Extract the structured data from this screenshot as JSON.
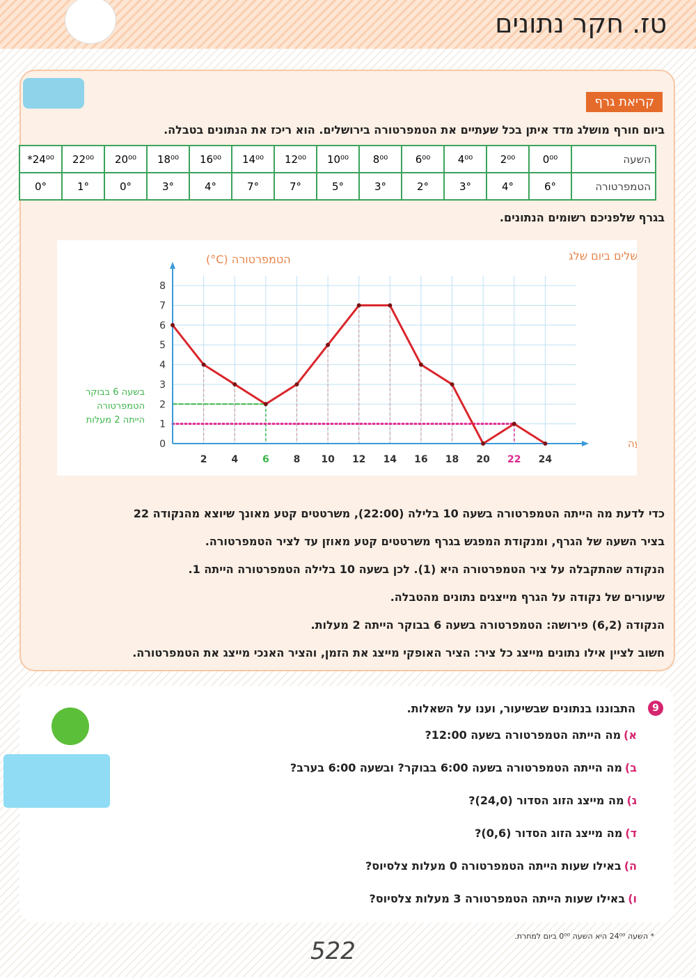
{
  "header": {
    "title": "טז. חקר נתונים"
  },
  "section": {
    "label": "קריאת גרף",
    "intro": "ביום חורף מושלג מדד איתן בכל שעתיים את הטמפרטורה בירושלים. הוא ריכז את הנתונים בטבלה."
  },
  "table": {
    "rows": [
      [
        "השעה",
        "0⁰⁰",
        "2⁰⁰",
        "4⁰⁰",
        "6⁰⁰",
        "8⁰⁰",
        "10⁰⁰",
        "12⁰⁰",
        "14⁰⁰",
        "16⁰⁰",
        "18⁰⁰",
        "20⁰⁰",
        "22⁰⁰",
        "*24⁰⁰"
      ],
      [
        "הטמפרטורה",
        "6°",
        "4°",
        "3°",
        "2°",
        "3°",
        "5°",
        "7°",
        "7°",
        "4°",
        "3°",
        "0°",
        "1°",
        "0°"
      ]
    ]
  },
  "chart_intro": "בגרף שלפניכם רשומים הנתונים.",
  "chart_data": {
    "type": "line",
    "title": "הטמפרטורות בירושלים ביום שלג",
    "y_label": "הטמפרטורה (C°)",
    "x_label": "השעה",
    "x": [
      0,
      2,
      4,
      6,
      8,
      10,
      12,
      14,
      16,
      18,
      20,
      22,
      24
    ],
    "values": [
      6,
      4,
      3,
      2,
      3,
      5,
      7,
      7,
      4,
      3,
      0,
      1,
      0
    ],
    "color": "#d9262c",
    "xlim": [
      0,
      26
    ],
    "ylim": [
      0,
      8.5
    ],
    "xticks": [
      2,
      4,
      6,
      8,
      10,
      12,
      14,
      16,
      18,
      20,
      22,
      24
    ],
    "yticks": [
      0,
      1,
      2,
      3,
      4,
      5,
      6,
      7,
      8
    ],
    "grid": true,
    "annotation": [
      "בשעה 6 בבוקר",
      "הטמפרטורה",
      "הייתה 2 מעלות"
    ]
  },
  "explanation": [
    "כדי לדעת מה הייתה הטמפרטורה בשעה 10 בלילה (22:00), משרטטים קטע מאונך שיוצא מהנקודה 22",
    "בציר השעה של הגרף, ומנקודת המפגש בגרף משרטטים קטע מאוזן עד לציר הטמפרטורה.",
    "הנקודה שהתקבלה על ציר הטמפרטורה היא (1). לכן בשעה 10 בלילה הטמפרטורה הייתה 1.",
    "שיעורים של נקודה על הגרף מייצגים נתונים מהטבלה.",
    "הנקודה (6,2) פירושה: הטמפרטורה בשעה 6 בבוקר הייתה 2 מעלות.",
    "חשוב לציין אילו נתונים מייצג כל ציר: הציר האופקי מייצג את הזמן, והציר האנכי מייצג את הטמפרטורה."
  ],
  "exercise": {
    "number": "9",
    "instruction": "התבוננו בנתונים שבשיעור, וענו על השאלות.",
    "questions": [
      {
        "letter": "א)",
        "text": "מה הייתה הטמפרטורה בשעה 12:00?"
      },
      {
        "letter": "ב)",
        "text": "מה הייתה הטמפרטורה בשעה 6:00 בבוקר? ובשעה 6:00 בערב?"
      },
      {
        "letter": "ג)",
        "text": "מה מייצג הזוג הסדור (24,0)?"
      },
      {
        "letter": "ד)",
        "text": "מה מייצג הזוג הסדור (0,6)?"
      },
      {
        "letter": "ה)",
        "text": "באילו שעות הייתה הטמפרטורה 0 מעלות צלסיוס?"
      },
      {
        "letter": "ו)",
        "text": "באילו שעות הייתה הטמפרטורה 3 מעלות צלסיוס?"
      }
    ]
  },
  "footnote": "* השעה 24⁰⁰ היא השעה 0⁰⁰ ביום למחרת.",
  "page_number": "522"
}
